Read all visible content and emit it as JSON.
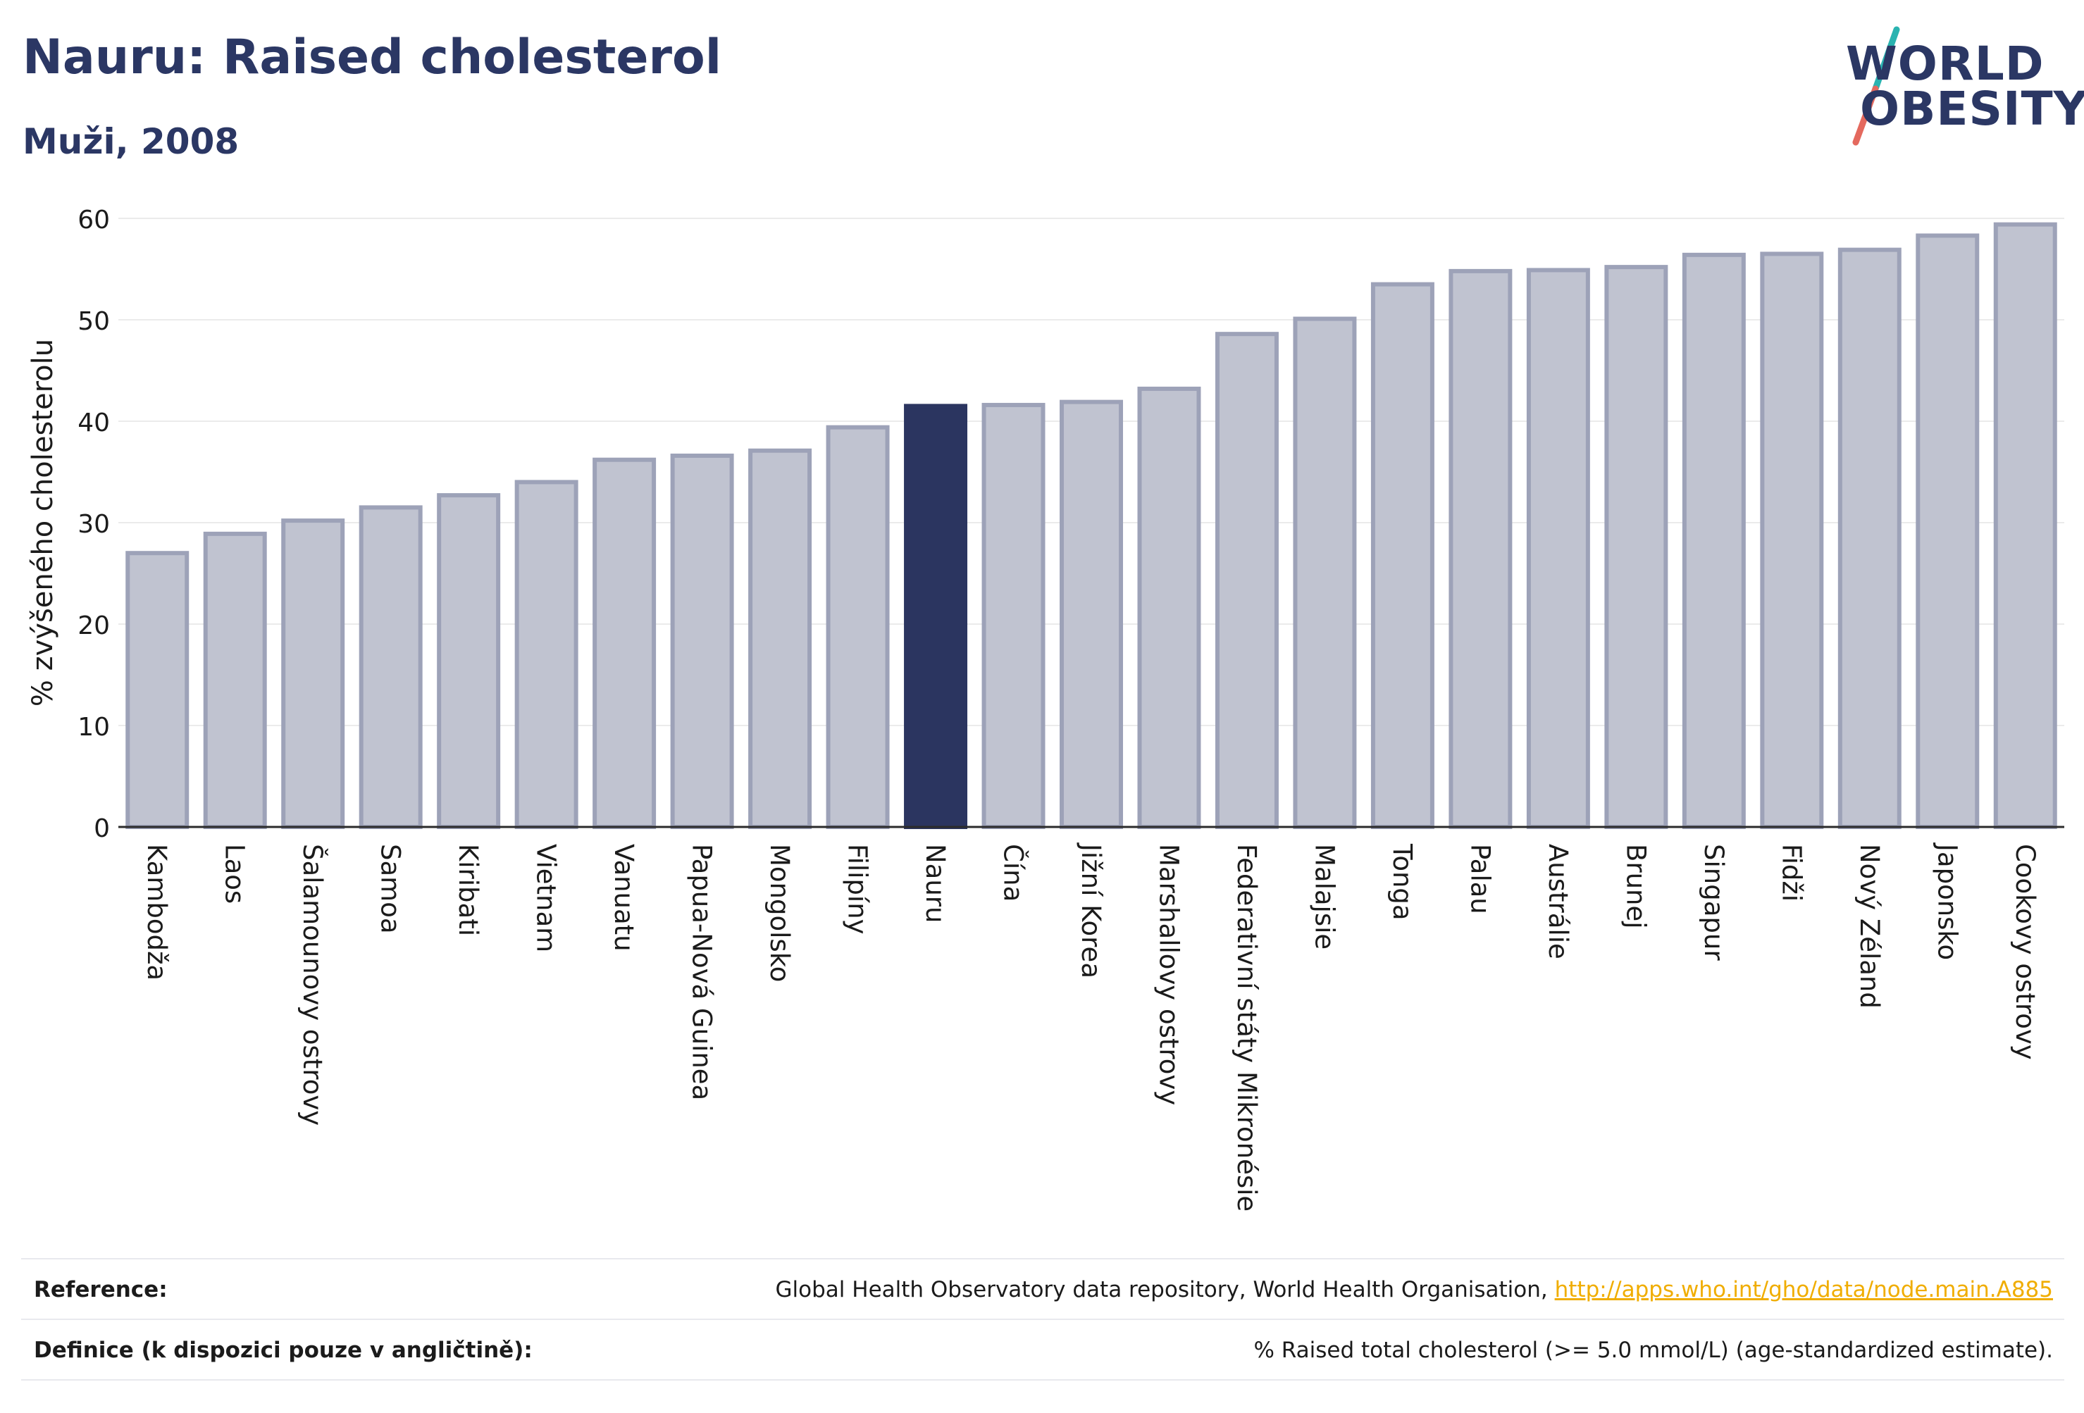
{
  "header": {
    "title": "Nauru: Raised cholesterol",
    "subtitle": "Muži, 2008"
  },
  "logo": {
    "line1": "WORLD",
    "line2": "OBESITY",
    "colors": {
      "text": "#2b3764",
      "slash_top": "#2ab3b0",
      "slash_bottom": "#e4695e"
    }
  },
  "colors": {
    "bar_fill": "#c0c3d0",
    "bar_stroke": "#9da2b8",
    "highlight": "#2b3560",
    "axis": "#2b2b2b",
    "grid": "#ebebeb"
  },
  "chart_data": {
    "type": "bar",
    "title": "Nauru: Raised cholesterol",
    "subtitle": "Muži, 2008",
    "xlabel": "",
    "ylabel": "% zvýšeného cholesterolu",
    "ylim": [
      0,
      60
    ],
    "yticks": [
      0,
      10,
      20,
      30,
      40,
      50,
      60
    ],
    "grid": true,
    "highlight": "Nauru",
    "categories": [
      "Kambodža",
      "Laos",
      "Šalamounovy ostrovy",
      "Samoa",
      "Kiribati",
      "Vietnam",
      "Vanuatu",
      "Papua-Nová Guinea",
      "Mongolsko",
      "Filipíny",
      "Nauru",
      "Čína",
      "Jižní Korea",
      "Marshallovy ostrovy",
      "Federativní státy Mikronésie",
      "Malajsie",
      "Tonga",
      "Palau",
      "Austrálie",
      "Brunej",
      "Singapur",
      "Fidži",
      "Nový Zéland",
      "Japonsko",
      "Cookovy ostrovy"
    ],
    "values": [
      27.0,
      28.9,
      30.2,
      31.5,
      32.7,
      34.0,
      36.2,
      36.6,
      37.1,
      39.4,
      41.5,
      41.6,
      41.9,
      43.2,
      48.6,
      50.1,
      53.5,
      54.8,
      54.9,
      55.2,
      56.4,
      56.5,
      56.9,
      58.3,
      59.4
    ]
  },
  "footer": {
    "reference_label": "Reference:",
    "reference_text": "Global Health Observatory data repository, World Health Organisation,",
    "reference_link": "http://apps.who.int/gho/data/node.main.A885",
    "definition_label": "Definice (k dispozici pouze v angličtině):",
    "definition_text": "% Raised total cholesterol (>= 5.0 mmol/L) (age-standardized estimate)."
  }
}
